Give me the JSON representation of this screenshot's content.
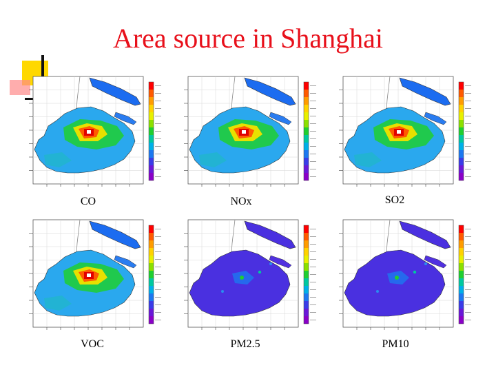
{
  "slide": {
    "title": "Area source in Shanghai",
    "colors": {
      "title": "#e8101b",
      "accent_yellow": "#ffd800"
    }
  },
  "panels": [
    {
      "caption": "CO",
      "scheme": "hot"
    },
    {
      "caption": "NOx",
      "scheme": "hot"
    },
    {
      "caption": "SO2",
      "scheme": "hot"
    },
    {
      "caption": "VOC",
      "scheme": "hot"
    },
    {
      "caption": "PM2.5",
      "scheme": "low"
    },
    {
      "caption": "PM10",
      "scheme": "low"
    }
  ]
}
